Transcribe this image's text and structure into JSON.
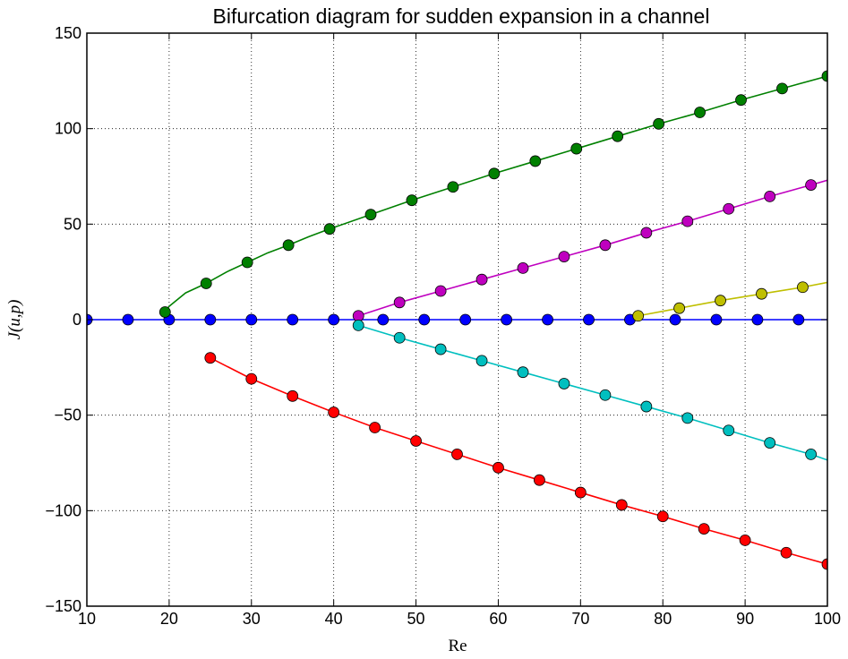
{
  "chart_data": {
    "type": "line",
    "title": "Bifurcation diagram for sudden expansion in a channel",
    "xlabel": "Re",
    "ylabel": "J(u,p)",
    "xlim": [
      10,
      100
    ],
    "ylim": [
      -150,
      150
    ],
    "xticks": [
      10,
      20,
      30,
      40,
      50,
      60,
      70,
      80,
      90,
      100
    ],
    "yticks": [
      -150,
      -100,
      -50,
      0,
      50,
      100,
      150
    ],
    "grid": true,
    "series": [
      {
        "color": "#0000ff",
        "line": [
          [
            10,
            0
          ],
          [
            100,
            0
          ]
        ],
        "markers": [
          [
            10,
            0
          ],
          [
            15,
            0
          ],
          [
            20,
            0
          ],
          [
            25,
            0
          ],
          [
            30,
            0
          ],
          [
            35,
            0
          ],
          [
            40,
            0
          ],
          [
            46,
            0
          ],
          [
            51,
            0
          ],
          [
            56,
            0
          ],
          [
            61,
            0
          ],
          [
            66,
            0
          ],
          [
            71,
            0
          ],
          [
            76,
            0
          ],
          [
            81.5,
            0
          ],
          [
            86.5,
            0
          ],
          [
            91.5,
            0
          ],
          [
            96.5,
            0
          ]
        ]
      },
      {
        "color": "#008000",
        "line": [
          [
            19.5,
            4
          ],
          [
            20,
            7
          ],
          [
            22,
            14
          ],
          [
            24.5,
            19
          ],
          [
            27,
            25
          ],
          [
            29.5,
            30
          ],
          [
            32,
            35
          ],
          [
            34.5,
            39
          ],
          [
            37,
            43.5
          ],
          [
            39.5,
            47.5
          ],
          [
            44.5,
            55
          ],
          [
            49.5,
            62.5
          ],
          [
            54.5,
            69.5
          ],
          [
            59.5,
            76.5
          ],
          [
            64.5,
            83
          ],
          [
            69.5,
            89.5
          ],
          [
            74.5,
            96
          ],
          [
            79.5,
            102.5
          ],
          [
            84.5,
            108.5
          ],
          [
            89.5,
            115
          ],
          [
            94.5,
            121
          ],
          [
            100,
            127.5
          ]
        ],
        "markers": [
          [
            19.5,
            4
          ],
          [
            24.5,
            19
          ],
          [
            29.5,
            30
          ],
          [
            34.5,
            39
          ],
          [
            39.5,
            47.5
          ],
          [
            44.5,
            55
          ],
          [
            49.5,
            62.5
          ],
          [
            54.5,
            69.5
          ],
          [
            59.5,
            76.5
          ],
          [
            64.5,
            83
          ],
          [
            69.5,
            89.5
          ],
          [
            74.5,
            96
          ],
          [
            79.5,
            102.5
          ],
          [
            84.5,
            108.5
          ],
          [
            89.5,
            115
          ],
          [
            94.5,
            121
          ],
          [
            100,
            127.5
          ]
        ]
      },
      {
        "color": "#bf00bf",
        "line": [
          [
            43,
            2
          ],
          [
            48,
            9
          ],
          [
            53,
            15
          ],
          [
            58,
            21
          ],
          [
            63,
            27
          ],
          [
            68,
            33
          ],
          [
            73,
            39
          ],
          [
            78,
            45.5
          ],
          [
            83,
            51.5
          ],
          [
            88,
            58
          ],
          [
            93,
            64.5
          ],
          [
            98,
            70.5
          ],
          [
            100,
            73
          ]
        ],
        "markers": [
          [
            43,
            2
          ],
          [
            48,
            9
          ],
          [
            53,
            15
          ],
          [
            58,
            21
          ],
          [
            63,
            27
          ],
          [
            68,
            33
          ],
          [
            73,
            39
          ],
          [
            78,
            45.5
          ],
          [
            83,
            51.5
          ],
          [
            88,
            58
          ],
          [
            93,
            64.5
          ],
          [
            98,
            70.5
          ]
        ]
      },
      {
        "color": "#bfbf00",
        "line": [
          [
            77,
            2
          ],
          [
            82,
            6
          ],
          [
            87,
            10
          ],
          [
            92,
            13.5
          ],
          [
            97,
            17
          ],
          [
            100,
            19.5
          ]
        ],
        "markers": [
          [
            77,
            2
          ],
          [
            82,
            6
          ],
          [
            87,
            10
          ],
          [
            92,
            13.5
          ],
          [
            97,
            17
          ]
        ]
      },
      {
        "color": "#00bfbf",
        "line": [
          [
            43,
            -3
          ],
          [
            48,
            -9.5
          ],
          [
            53,
            -15.5
          ],
          [
            58,
            -21.5
          ],
          [
            63,
            -27.5
          ],
          [
            68,
            -33.5
          ],
          [
            73,
            -39.5
          ],
          [
            78,
            -45.5
          ],
          [
            83,
            -51.5
          ],
          [
            88,
            -58
          ],
          [
            93,
            -64.5
          ],
          [
            98,
            -70.5
          ],
          [
            100,
            -73.5
          ]
        ],
        "markers": [
          [
            43,
            -3
          ],
          [
            48,
            -9.5
          ],
          [
            53,
            -15.5
          ],
          [
            58,
            -21.5
          ],
          [
            63,
            -27.5
          ],
          [
            68,
            -33.5
          ],
          [
            73,
            -39.5
          ],
          [
            78,
            -45.5
          ],
          [
            83,
            -51.5
          ],
          [
            88,
            -58
          ],
          [
            93,
            -64.5
          ],
          [
            98,
            -70.5
          ]
        ]
      },
      {
        "color": "#ff0000",
        "line": [
          [
            25,
            -20
          ],
          [
            30,
            -31
          ],
          [
            35,
            -40
          ],
          [
            40,
            -48.5
          ],
          [
            45,
            -56.5
          ],
          [
            50,
            -63.5
          ],
          [
            55,
            -70.5
          ],
          [
            60,
            -77.5
          ],
          [
            65,
            -84
          ],
          [
            70,
            -90.5
          ],
          [
            75,
            -97
          ],
          [
            80,
            -103
          ],
          [
            85,
            -109.5
          ],
          [
            90,
            -115.5
          ],
          [
            95,
            -122
          ],
          [
            100,
            -128
          ]
        ],
        "markers": [
          [
            25,
            -20
          ],
          [
            30,
            -31
          ],
          [
            35,
            -40
          ],
          [
            40,
            -48.5
          ],
          [
            45,
            -56.5
          ],
          [
            50,
            -63.5
          ],
          [
            55,
            -70.5
          ],
          [
            60,
            -77.5
          ],
          [
            65,
            -84
          ],
          [
            70,
            -90.5
          ],
          [
            75,
            -97
          ],
          [
            80,
            -103
          ],
          [
            85,
            -109.5
          ],
          [
            90,
            -115.5
          ],
          [
            95,
            -122
          ],
          [
            100,
            -128
          ]
        ]
      }
    ]
  }
}
